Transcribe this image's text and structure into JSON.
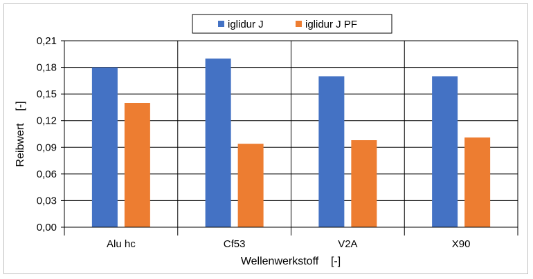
{
  "chart_data": {
    "type": "bar",
    "categories": [
      "Alu hc",
      "Cf53",
      "V2A",
      "X90"
    ],
    "series": [
      {
        "name": "iglidur J",
        "values": [
          0.18,
          0.19,
          0.17,
          0.17
        ],
        "color": "#4472c4"
      },
      {
        "name": "iglidur J PF",
        "values": [
          0.14,
          0.094,
          0.098,
          0.101
        ],
        "color": "#ed7d31"
      }
    ],
    "xlabel": "Wellenwerkstoff    [-]",
    "ylabel": "Reibwert    [-]",
    "ylim": [
      0,
      0.21
    ],
    "yticks": [
      0,
      0.03,
      0.06,
      0.09,
      0.12,
      0.15,
      0.18,
      0.21
    ],
    "ytick_labels": [
      "0,00",
      "0,03",
      "0,06",
      "0,09",
      "0,12",
      "0,15",
      "0,18",
      "0,21"
    ],
    "grid": true,
    "legend_position": "top-center"
  }
}
